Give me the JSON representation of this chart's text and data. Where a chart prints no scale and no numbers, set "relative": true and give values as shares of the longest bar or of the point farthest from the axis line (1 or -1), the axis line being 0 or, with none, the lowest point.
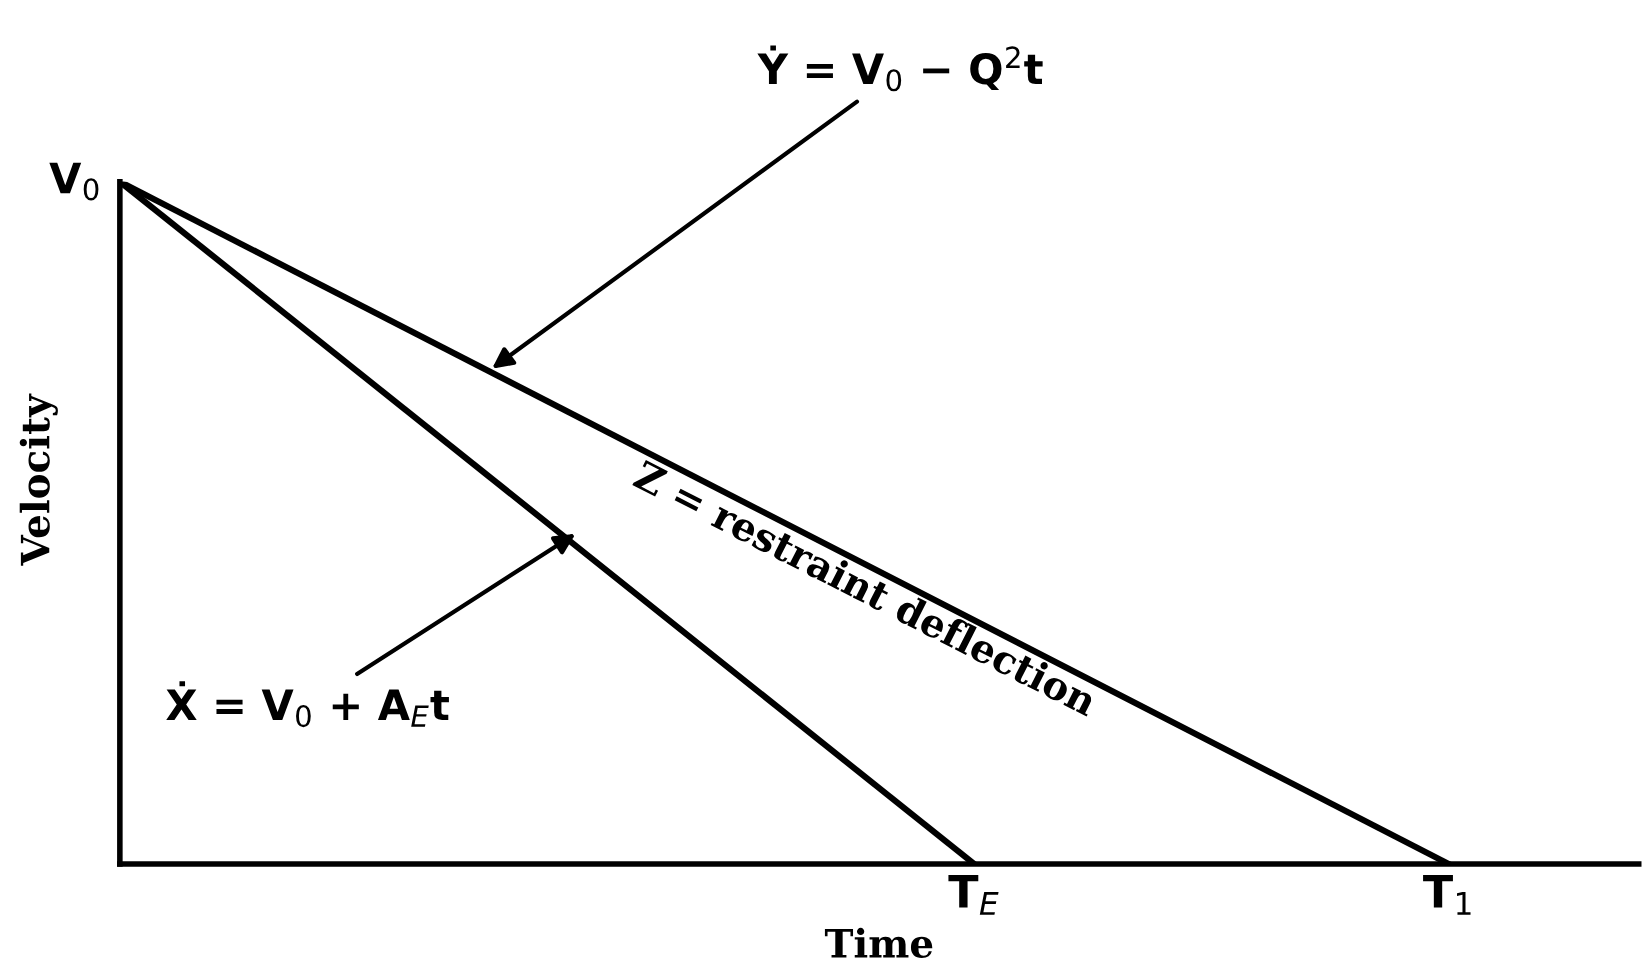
{
  "chart_data": {
    "type": "line",
    "relative": true,
    "xlabel": "Time",
    "ylabel": "Velocity",
    "categories": [
      null,
      null,
      null,
      null,
      null,
      null,
      null,
      null,
      null,
      "T$_{E}$",
      null,
      null,
      null,
      null,
      "T$_{1}$",
      null,
      null
    ],
    "series": [
      {
        "color": "#000000",
        "values": [
          1,
          null,
          null,
          null,
          null,
          null,
          null,
          null,
          null,
          null,
          null,
          null,
          null,
          null,
          0,
          null,
          null
        ]
      },
      {
        "color": "#000000",
        "values": [
          1,
          null,
          null,
          null,
          null,
          null,
          null,
          null,
          null,
          0,
          null,
          null,
          null,
          null,
          null,
          null,
          null
        ]
      }
    ],
    "annotations": [
      "V$_{0}$",
      "Ẏ = V$_{0}$ − Q$^{2}$t",
      "Ẋ = V$_{0}$ + A$_{E}$t",
      "Z = restraint deflection"
    ],
    "grid": false,
    "legend": false,
    "marker": "none",
    "line_style": "solid"
  }
}
